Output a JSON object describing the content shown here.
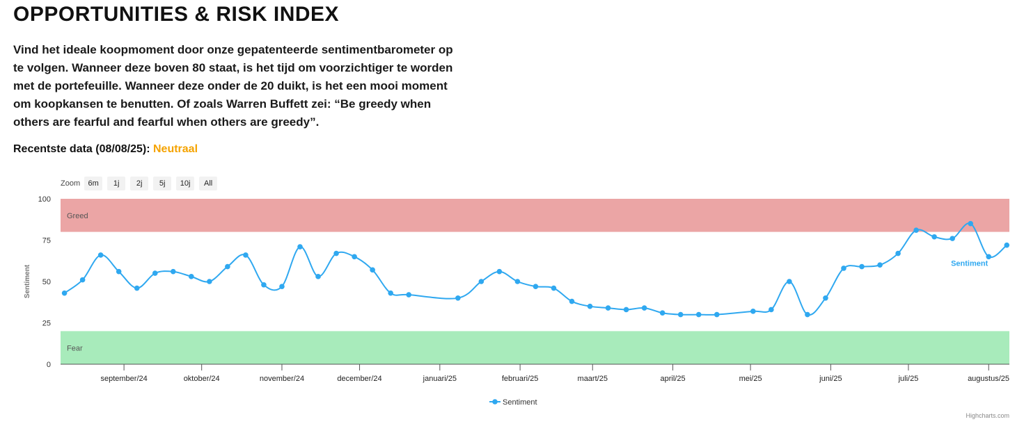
{
  "header": {
    "title": "OPPORTUNITIES & RISK INDEX",
    "intro": "Vind het ideale koopmoment door onze gepatenteerde sentimentbarometer op te volgen. Wanneer deze boven 80 staat, is het tijd om voorzichtiger te worden met de portefeuille. Wanneer deze onder de 20 duikt, is het een mooi moment om koopkansen te benutten. Of zoals Warren Buffett zei: “Be greedy when others are fearful and fearful when others are greedy”.",
    "recent_label": "Recentste data (08/08/25):",
    "recent_status": "Neutraal"
  },
  "zoom": {
    "label": "Zoom",
    "buttons": [
      "6m",
      "1j",
      "2j",
      "5j",
      "10j",
      "All"
    ]
  },
  "credits": "Highcharts.com",
  "colors": {
    "line": "#2fa8f0",
    "greed_band": "#eba5a5",
    "fear_band": "#a8ebbb",
    "status": "#f5a300"
  },
  "chart_data": {
    "type": "line",
    "title": "",
    "ylabel": "Sentiment",
    "ylim": [
      0,
      100
    ],
    "y_ticks": [
      0,
      25,
      50,
      75,
      100
    ],
    "x_tick_labels": [
      "september/24",
      "oktober/24",
      "november/24",
      "december/24",
      "januari/25",
      "februari/25",
      "maart/25",
      "april/25",
      "mei/25",
      "juni/25",
      "juli/25",
      "augustus/25"
    ],
    "bands": [
      {
        "label": "Greed",
        "from": 80,
        "to": 100
      },
      {
        "label": "Fear",
        "from": 0,
        "to": 20
      }
    ],
    "series": [
      {
        "name": "Sentiment",
        "x": [
          "2024-08-09",
          "2024-08-16",
          "2024-08-23",
          "2024-08-30",
          "2024-09-06",
          "2024-09-13",
          "2024-09-20",
          "2024-09-27",
          "2024-10-04",
          "2024-10-11",
          "2024-10-18",
          "2024-10-25",
          "2024-11-01",
          "2024-11-08",
          "2024-11-15",
          "2024-11-22",
          "2024-11-29",
          "2024-12-06",
          "2024-12-13",
          "2024-12-20",
          "2025-01-08",
          "2025-01-17",
          "2025-01-24",
          "2025-01-31",
          "2025-02-07",
          "2025-02-14",
          "2025-02-21",
          "2025-02-28",
          "2025-03-07",
          "2025-03-14",
          "2025-03-21",
          "2025-03-28",
          "2025-04-04",
          "2025-04-11",
          "2025-04-18",
          "2025-05-02",
          "2025-05-09",
          "2025-05-16",
          "2025-05-23",
          "2025-05-30",
          "2025-06-06",
          "2025-06-13",
          "2025-06-20",
          "2025-06-27",
          "2025-07-04",
          "2025-07-11",
          "2025-07-18",
          "2025-07-25",
          "2025-08-01",
          "2025-08-08"
        ],
        "values": [
          43,
          51,
          66,
          56,
          46,
          55,
          56,
          53,
          50,
          59,
          66,
          48,
          47,
          71,
          53,
          67,
          65,
          57,
          43,
          42,
          40,
          50,
          56,
          50,
          47,
          46,
          38,
          35,
          34,
          33,
          34,
          31,
          30,
          30,
          30,
          32,
          33,
          50,
          30,
          40,
          58,
          59,
          60,
          67,
          81,
          77,
          76,
          85,
          65,
          72
        ]
      }
    ],
    "series_label": "Sentiment",
    "legend": "bottom-center",
    "grid": false
  }
}
